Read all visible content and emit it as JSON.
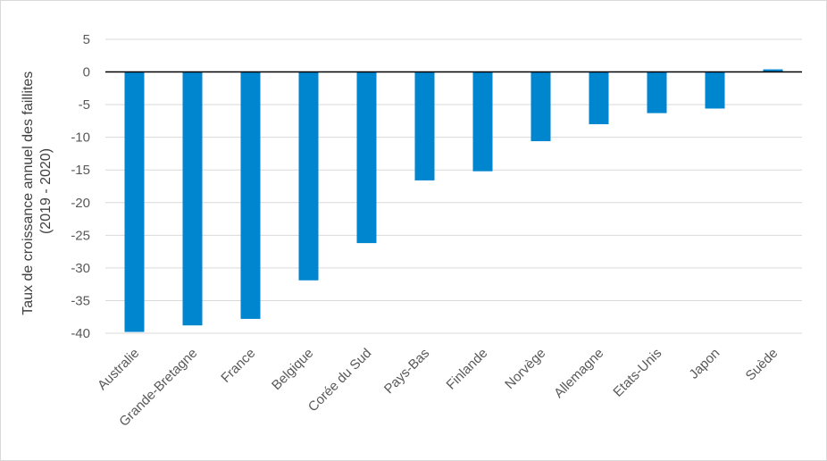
{
  "chart_data": {
    "type": "bar",
    "title": "",
    "xlabel": "",
    "ylabel_lines": [
      "Taux de croissance annuel des faillites",
      "(2019 - 2020)"
    ],
    "categories": [
      "Australie",
      "Grande-Bretagne",
      "France",
      "Belgique",
      "Corée du Sud",
      "Pays-Bas",
      "Finlande",
      "Norvège",
      "Allemagne",
      "Etats-Unis",
      "Japon",
      "Suède"
    ],
    "values": [
      -39.8,
      -38.8,
      -37.8,
      -31.9,
      -26.2,
      -16.6,
      -15.2,
      -10.6,
      -8.0,
      -6.3,
      -5.6,
      0.4
    ],
    "ylim": [
      -40,
      5
    ],
    "yticks": [
      5,
      0,
      -5,
      -10,
      -15,
      -20,
      -25,
      -30,
      -35,
      -40
    ],
    "grid": true,
    "bar_color": "#0085cf",
    "grid_color": "#d9d9d9",
    "zero_line_color": "#000000"
  }
}
